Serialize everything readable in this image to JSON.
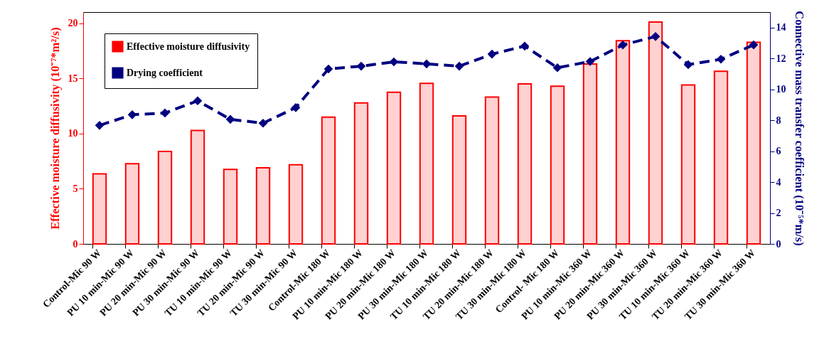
{
  "chart_data": {
    "type": "bar",
    "categories": [
      "Control-Mic 90 W",
      "PU 10 min-Mic 90 W",
      "PU 20 min-Mic 90 W",
      "PU 30 min-Mic 90 W",
      "TU 10 min-Mic 90 W",
      "TU 20 min-Mic 90 W",
      "TU 30 min-Mic 90 W",
      "Control-Mic 180 W",
      "PU 10 min-Mic 180 W",
      "PU 20 min-Mic 180 W",
      "PU 30 min-Mic 180 W",
      "TU 10 min-Mic 180 W",
      "TU 20 min-Mic 180 W",
      "TU 30 min-Mic 180 W",
      "Control- Mic 180 W",
      "PU 10 min-Mic 360 W",
      "PU 20 min-Mic 360 W",
      "PU 30 min-Mic 360 W",
      "TU 10 min-Mic 360 W",
      "TU 20 min-Mic 360 W",
      "TU 30 min-Mic 360 W"
    ],
    "ylabel": "Effective moisture diffusivity (10⁻⁷*m²/s)",
    "y2label": "Connective mass transfer coefficient (10⁻⁵*m/s)",
    "series": [
      {
        "name": "Effective moisture diffusivity",
        "color": "#ff0000",
        "values": [
          6.35,
          7.26,
          8.37,
          10.27,
          6.74,
          6.89,
          7.16,
          11.48,
          12.77,
          13.73,
          14.54,
          11.59,
          13.3,
          14.49,
          14.29,
          16.3,
          18.41,
          20.1,
          14.39,
          15.63,
          18.26
        ]
      },
      {
        "name": "Drying coefficient",
        "type": "line",
        "axis": "y2",
        "color": "#000080",
        "marker": "diamond",
        "line_style": "dashed",
        "values": [
          7.67,
          8.36,
          8.47,
          9.26,
          8.06,
          7.81,
          8.82,
          11.32,
          11.5,
          11.78,
          11.65,
          11.5,
          12.28,
          12.8,
          11.4,
          11.8,
          12.87,
          13.42,
          11.6,
          11.95,
          12.88
        ]
      }
    ],
    "ylim": [
      0,
      21
    ],
    "yticks": [
      0,
      5,
      10,
      15,
      20
    ],
    "y2lim": [
      0,
      15
    ],
    "y2ticks": [
      0,
      2,
      4,
      6,
      8,
      10,
      12,
      14
    ],
    "legend": "top left",
    "grid": false
  }
}
